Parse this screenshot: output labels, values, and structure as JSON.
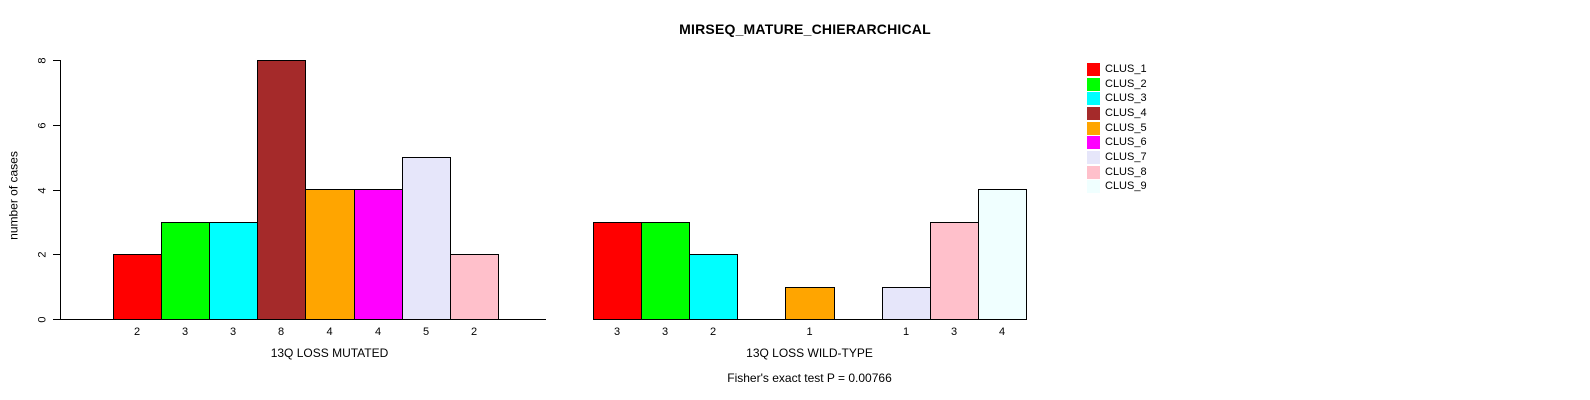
{
  "figure_title": "MIRSEQ_MATURE_CHIERARCHICAL",
  "y_axis_label": "number of cases",
  "footer_note": "Fisher's exact test P = 0.00766",
  "legend": {
    "position": "top-right",
    "items": [
      {
        "label": "CLUS_1",
        "color": "#FF0000"
      },
      {
        "label": "CLUS_2",
        "color": "#00FF00"
      },
      {
        "label": "CLUS_3",
        "color": "#00FFFF"
      },
      {
        "label": "CLUS_4",
        "color": "#A52A2A"
      },
      {
        "label": "CLUS_5",
        "color": "#FFA500"
      },
      {
        "label": "CLUS_6",
        "color": "#FF00FF"
      },
      {
        "label": "CLUS_7",
        "color": "#E6E6FA"
      },
      {
        "label": "CLUS_8",
        "color": "#FFC0CB"
      },
      {
        "label": "CLUS_9",
        "color": "#F0FFFF"
      }
    ]
  },
  "chart_data": [
    {
      "type": "bar",
      "title": "MIRSEQ_MATURE_CHIERARCHICAL",
      "xlabel": "13Q LOSS MUTATED",
      "ylabel": "number of cases",
      "categories": [
        "CLUS_1",
        "CLUS_2",
        "CLUS_3",
        "CLUS_4",
        "CLUS_5",
        "CLUS_6",
        "CLUS_7",
        "CLUS_8",
        "CLUS_9"
      ],
      "values": [
        2,
        3,
        3,
        8,
        4,
        4,
        5,
        2,
        0
      ],
      "bar_labels": [
        "2",
        "3",
        "3",
        "8",
        "4",
        "4",
        "5",
        "2",
        ""
      ],
      "colors": [
        "#FF0000",
        "#00FF00",
        "#00FFFF",
        "#A52A2A",
        "#FFA500",
        "#FF00FF",
        "#E6E6FA",
        "#FFC0CB",
        "#F0FFFF"
      ],
      "ylim": [
        0,
        8
      ],
      "yticks": [
        0,
        2,
        4,
        6,
        8
      ],
      "show_y_axis": true,
      "grid": false,
      "bar_border_color": "#000000"
    },
    {
      "type": "bar",
      "title": "",
      "xlabel": "13Q LOSS WILD-TYPE",
      "ylabel": "",
      "categories": [
        "CLUS_1",
        "CLUS_2",
        "CLUS_3",
        "CLUS_4",
        "CLUS_5",
        "CLUS_6",
        "CLUS_7",
        "CLUS_8",
        "CLUS_9"
      ],
      "values": [
        3,
        3,
        2,
        0,
        1,
        0,
        1,
        3,
        4
      ],
      "bar_labels": [
        "3",
        "3",
        "2",
        "",
        "1",
        "",
        "1",
        "3",
        "4"
      ],
      "colors": [
        "#FF0000",
        "#00FF00",
        "#00FFFF",
        "#A52A2A",
        "#FFA500",
        "#FF00FF",
        "#E6E6FA",
        "#FFC0CB",
        "#F0FFFF"
      ],
      "ylim": [
        0,
        8
      ],
      "yticks": [],
      "show_y_axis": false,
      "grid": false,
      "bar_border_color": "#000000"
    }
  ]
}
